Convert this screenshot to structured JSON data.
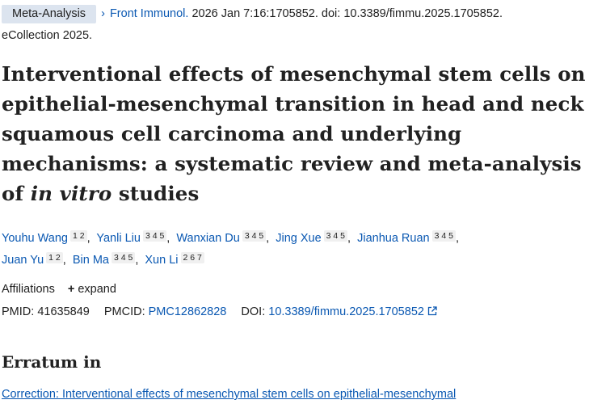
{
  "header": {
    "badge": "Meta-Analysis",
    "chevron": "›",
    "journal": "Front Immunol.",
    "citation": " 2026 Jan 7:16:1705852. doi: 10.3389/fimmu.2025.1705852.",
    "ecollection": "eCollection 2025."
  },
  "title": {
    "before_italic": "Interventional effects of mesenchymal stem cells on epithelial-mesenchymal transition in head and neck squamous cell carcinoma and underlying mechanisms: a systematic review and meta-analysis of ",
    "italic": "in vitro",
    "after_italic": " studies"
  },
  "authors": [
    {
      "name": "Youhu Wang",
      "affils": "1 2"
    },
    {
      "name": "Yanli Liu",
      "affils": "3 4 5"
    },
    {
      "name": "Wanxian Du",
      "affils": "3 4 5"
    },
    {
      "name": "Jing Xue",
      "affils": "3 4 5"
    },
    {
      "name": "Jianhua Ruan",
      "affils": "3 4 5"
    },
    {
      "name": "Juan Yu",
      "affils": "1 2"
    },
    {
      "name": "Bin Ma",
      "affils": "3 4 5"
    },
    {
      "name": "Xun Li",
      "affils": "2 6 7"
    }
  ],
  "affiliations": {
    "label": "Affiliations",
    "expand_icon": "plus-icon",
    "expand_label": "expand"
  },
  "identifiers": {
    "pmid_label": "PMID:",
    "pmid": "41635849",
    "pmcid_label": "PMCID:",
    "pmcid": "PMC12862828",
    "doi_label": "DOI:",
    "doi": "10.3389/fimmu.2025.1705852",
    "doi_icon": "external-link-icon"
  },
  "erratum": {
    "heading": "Erratum in",
    "correction_link": "Correction: Interventional effects of mesenchymal stem cells on epithelial-mesenchymal"
  },
  "colors": {
    "link": "#0a58b2",
    "badge_bg": "#dce4ef",
    "text": "#212121"
  }
}
